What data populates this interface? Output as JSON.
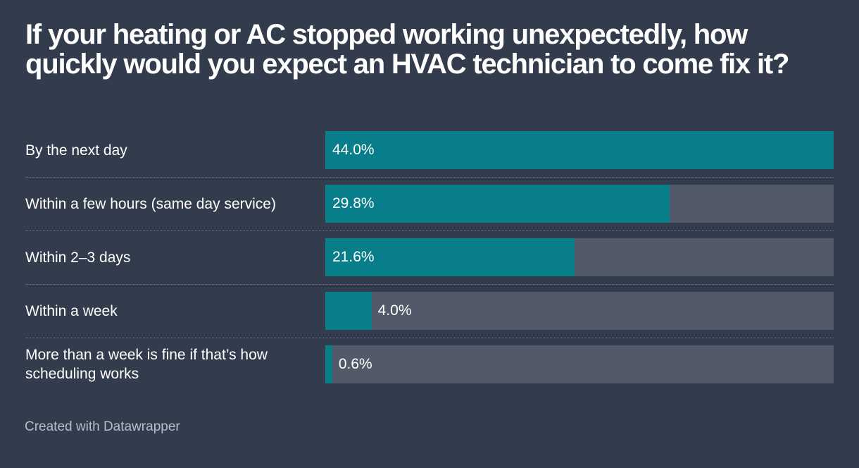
{
  "title": "If your heating or AC stopped working unexpectedly, how quickly would you expect an HVAC technician to come fix it?",
  "credit": "Created with Datawrapper",
  "colors": {
    "background": "#333c4c",
    "bar": "#087e8b",
    "track": "#525a69",
    "text": "#ffffff",
    "credit": "#b8bec9"
  },
  "chart_data": {
    "type": "bar",
    "orientation": "horizontal",
    "title": "If your heating or AC stopped working unexpectedly, how quickly would you expect an HVAC technician to come fix it?",
    "categories": [
      "By the next day",
      "Within a few hours (same day service)",
      "Within 2–3 days",
      "Within a week",
      "More than a week is fine if that’s how scheduling works"
    ],
    "values": [
      44.0,
      29.8,
      21.6,
      4.0,
      0.6
    ],
    "value_labels": [
      "44.0%",
      "29.8%",
      "21.6%",
      "4.0%",
      "0.6%"
    ],
    "xlim": [
      0,
      44.0
    ],
    "unit": "%",
    "grid": false,
    "legend": "none"
  }
}
